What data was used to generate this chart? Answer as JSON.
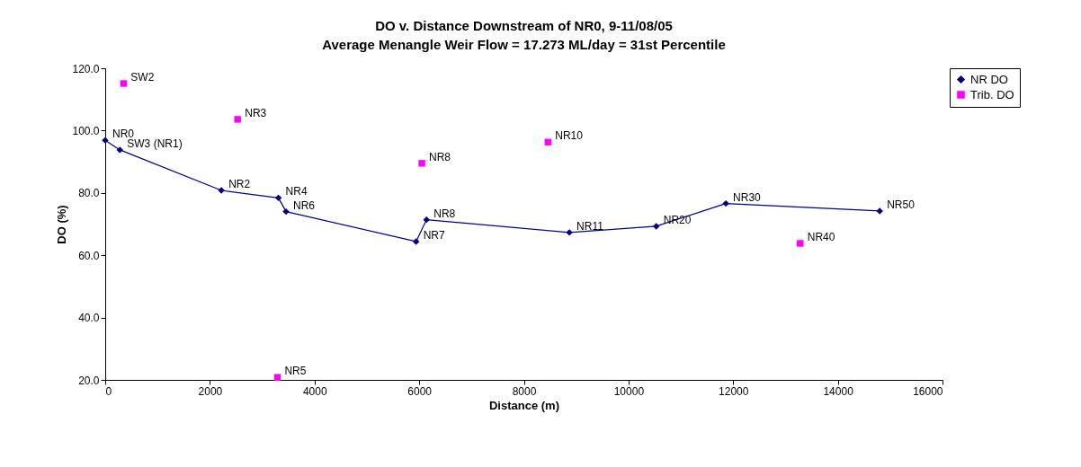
{
  "chart_data": {
    "type": "line",
    "title": "DO v. Distance Downstream of NR0, 9-11/08/05",
    "subtitle": "Average Menangle Weir Flow = 17.273 ML/day = 31st Percentile",
    "xlabel": "Distance (m)",
    "ylabel": "DO (%)",
    "xlim": [
      0,
      16000
    ],
    "xticks": [
      0,
      2000,
      4000,
      6000,
      8000,
      10000,
      12000,
      14000,
      16000
    ],
    "ylim": [
      20,
      120
    ],
    "yticks": [
      {
        "value": 20,
        "label": "20.0"
      },
      {
        "value": 40,
        "label": "40.0"
      },
      {
        "value": 60,
        "label": "60.0"
      },
      {
        "value": 80,
        "label": "80.0"
      },
      {
        "value": 100,
        "label": "100.0"
      },
      {
        "value": 120,
        "label": "120.0"
      }
    ],
    "grid": false,
    "legend": "right",
    "series": [
      {
        "name": "NR DO",
        "marker": "diamond",
        "color": "#000080",
        "x": [
          0,
          280,
          2220,
          3310,
          3455,
          5940,
          6140,
          8870,
          10530,
          11860,
          14800
        ],
        "values": [
          96.9,
          93.8,
          80.8,
          78.4,
          74.0,
          64.4,
          71.4,
          67.3,
          69.3,
          76.6,
          74.2
        ]
      },
      {
        "name": "Trib. DO",
        "type": "scatter",
        "marker": "square",
        "color": "#ff00ff",
        "x": [
          350,
          2530,
          3290,
          6050,
          8460,
          13280
        ],
        "values": [
          115.1,
          103.6,
          20.8,
          89.5,
          96.3,
          63.8
        ]
      }
    ],
    "annotations": [
      {
        "text": "NR0",
        "x": 0,
        "y": 96.9
      },
      {
        "text": "SW3 (NR1)",
        "x": 280,
        "y": 93.8
      },
      {
        "text": "NR2",
        "x": 2220,
        "y": 80.8
      },
      {
        "text": "NR4",
        "x": 3310,
        "y": 78.4
      },
      {
        "text": "NR6",
        "x": 3455,
        "y": 74.0
      },
      {
        "text": "NR7",
        "x": 5940,
        "y": 64.4
      },
      {
        "text": "NR8",
        "x": 6140,
        "y": 71.4
      },
      {
        "text": "NR11",
        "x": 8870,
        "y": 67.3
      },
      {
        "text": "NR20",
        "x": 10530,
        "y": 69.3
      },
      {
        "text": "NR30",
        "x": 11860,
        "y": 76.6
      },
      {
        "text": "NR50",
        "x": 14800,
        "y": 74.2
      },
      {
        "text": "SW2",
        "x": 350,
        "y": 115.1
      },
      {
        "text": "NR3",
        "x": 2530,
        "y": 103.6
      },
      {
        "text": "NR5",
        "x": 3290,
        "y": 20.8
      },
      {
        "text": "NR8",
        "x": 6050,
        "y": 89.5
      },
      {
        "text": "NR10",
        "x": 8460,
        "y": 96.3
      },
      {
        "text": "NR40",
        "x": 13280,
        "y": 63.8
      }
    ]
  }
}
